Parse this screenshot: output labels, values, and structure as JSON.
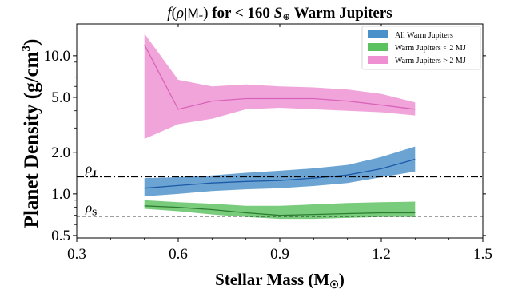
{
  "chart_data": {
    "type": "line",
    "title": "f(ρ|M*) for < 160 S⊕ Warm Jupiters",
    "title_parts": {
      "func": "f",
      "open": "(",
      "rho": "ρ",
      "bar": "|M",
      "star": "*",
      "close": ")",
      "rest": " for < 160 ",
      "s": "S",
      "earth": "⊕",
      "tail": " Warm Jupiters"
    },
    "xlabel": "Stellar Mass (M",
    "xlabel_sun": "☉",
    "xlabel_close": ")",
    "ylabel": "Planet Density (g/cm",
    "ylabel_sup": "3",
    "ylabel_close": ")",
    "y_scale": "log",
    "xlim": [
      0.3,
      1.5
    ],
    "ylim": [
      0.48,
      17
    ],
    "x_ticks": [
      0.3,
      0.6,
      0.9,
      1.2,
      1.5
    ],
    "x_tick_labels": [
      "0.3",
      "0.6",
      "0.9",
      "1.2",
      "1.5"
    ],
    "y_ticks": [
      0.5,
      1.0,
      2.0,
      5.0,
      10.0
    ],
    "y_tick_labels": [
      "0.5",
      "1.0",
      "2.0",
      "5.0",
      "10.0"
    ],
    "legend": {
      "placement": "top-right",
      "items": [
        {
          "label": "All Warm Jupiters",
          "color": "#4a90c9"
        },
        {
          "label": "Warm Jupiters < 2 MJ",
          "color": "#5cc15f"
        },
        {
          "label": "Warm Jupiters > 2 MJ",
          "color": "#ee90d2"
        }
      ]
    },
    "reference_lines": [
      {
        "name": "ρJ",
        "sym": "ρ",
        "sub": "J",
        "y": 1.33,
        "style": "dashdot"
      },
      {
        "name": "ρS",
        "sym": "ρ",
        "sub": "S",
        "y": 0.69,
        "style": "dashed"
      }
    ],
    "x": [
      0.5,
      0.6,
      0.7,
      0.8,
      0.9,
      1.0,
      1.1,
      1.2,
      1.3
    ],
    "series": [
      {
        "name": "Warm Jupiters > 2 MJ",
        "fill_color": "#ee90d2",
        "line_color": "#d963b8",
        "median": [
          12.0,
          4.1,
          4.7,
          4.9,
          4.9,
          4.9,
          4.7,
          4.4,
          4.1
        ],
        "upper": [
          14.5,
          6.7,
          6.0,
          6.2,
          6.0,
          5.9,
          5.7,
          5.3,
          4.6
        ],
        "lower": [
          2.5,
          3.2,
          3.5,
          4.1,
          4.2,
          4.1,
          4.0,
          3.9,
          3.7
        ]
      },
      {
        "name": "All Warm Jupiters",
        "fill_color": "#4a90c9",
        "line_color": "#1d5aa8",
        "median": [
          1.1,
          1.15,
          1.2,
          1.23,
          1.25,
          1.3,
          1.37,
          1.52,
          1.78
        ],
        "upper": [
          1.3,
          1.32,
          1.36,
          1.42,
          1.47,
          1.53,
          1.62,
          1.85,
          2.2
        ],
        "lower": [
          0.96,
          1.0,
          1.05,
          1.08,
          1.1,
          1.14,
          1.2,
          1.32,
          1.45
        ]
      },
      {
        "name": "Warm Jupiters < 2 MJ",
        "fill_color": "#5cc15f",
        "line_color": "#2e7d32",
        "median": [
          0.82,
          0.8,
          0.77,
          0.73,
          0.7,
          0.71,
          0.72,
          0.73,
          0.73
        ],
        "upper": [
          0.9,
          0.87,
          0.85,
          0.82,
          0.82,
          0.84,
          0.86,
          0.87,
          0.88
        ],
        "lower": [
          0.78,
          0.75,
          0.71,
          0.68,
          0.66,
          0.66,
          0.67,
          0.68,
          0.68
        ]
      }
    ]
  }
}
